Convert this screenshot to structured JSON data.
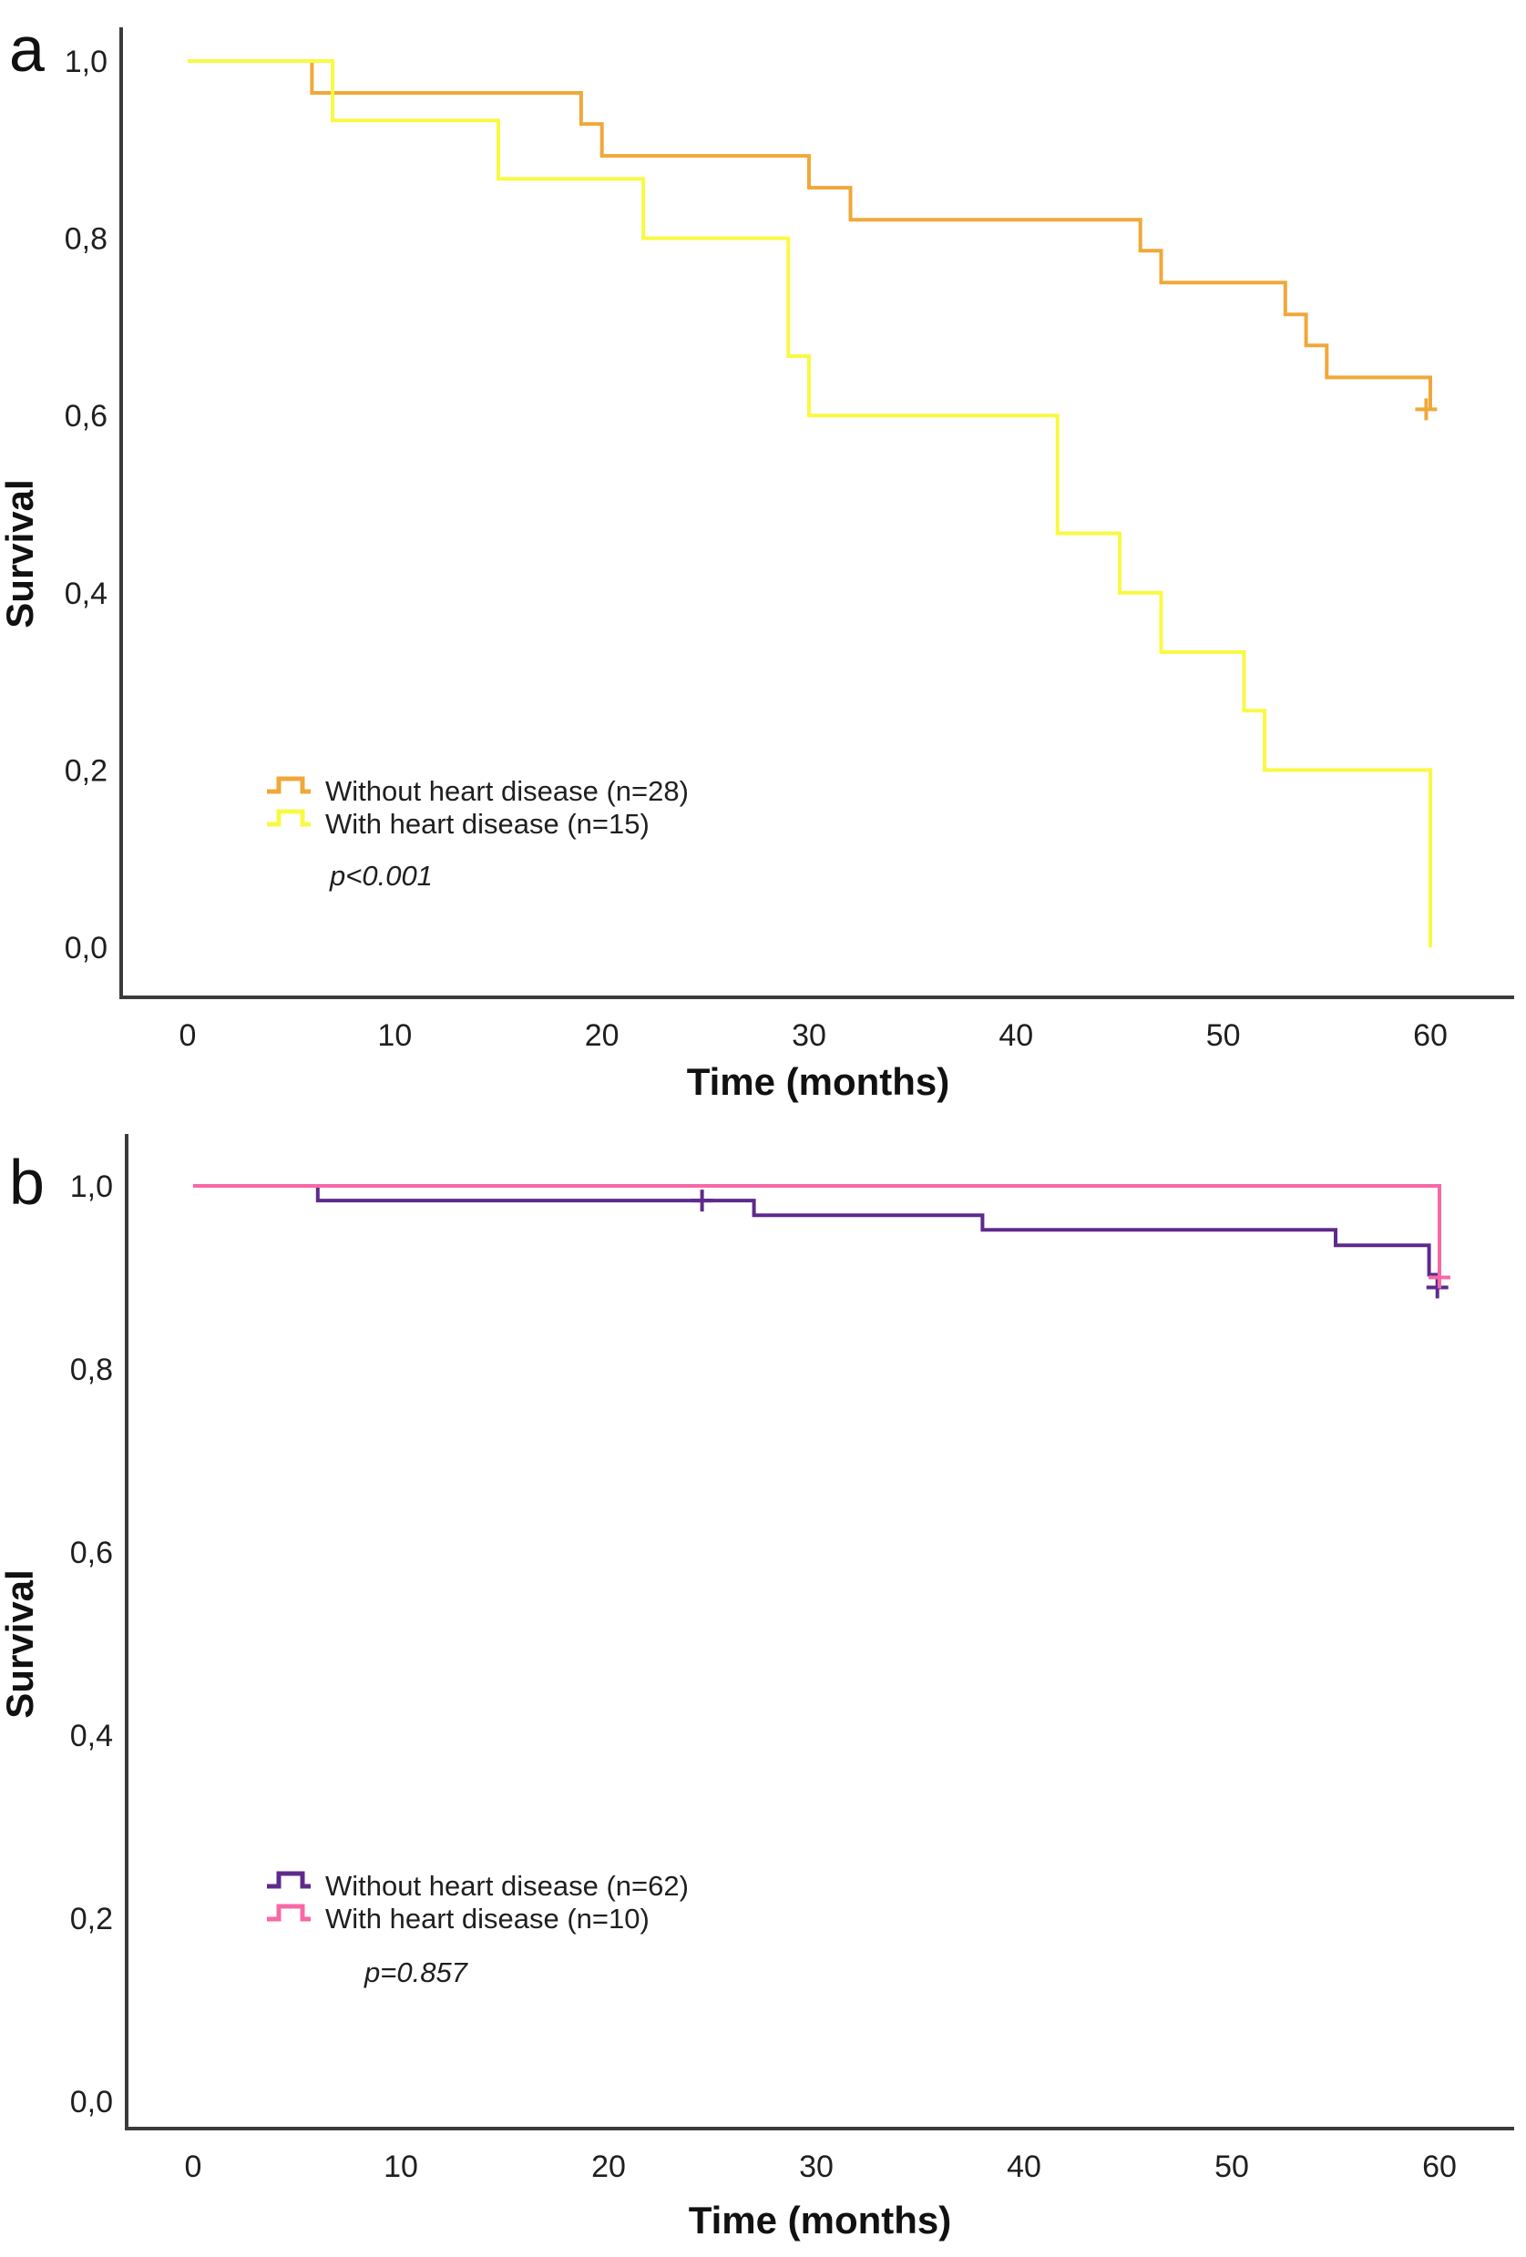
{
  "panels": [
    {
      "letter": "a",
      "x_axis_title": "Time (months)",
      "y_axis_title": "Survival",
      "x_tick_labels": [
        "0",
        "10",
        "20",
        "30",
        "40",
        "50",
        "60"
      ],
      "y_tick_labels": [
        "1,0",
        "0,8",
        "0,6",
        "0,4",
        "0,2",
        "0,0"
      ],
      "legend_items": [
        {
          "label": "Without heart disease (n=28)",
          "color": "#F0A83A"
        },
        {
          "label": "With heart disease (n=15)",
          "color": "#F9F943"
        }
      ],
      "p_value_label": "p<0.001"
    },
    {
      "letter": "b",
      "x_axis_title": "Time (months)",
      "y_axis_title": "Survival",
      "x_tick_labels": [
        "0",
        "10",
        "20",
        "30",
        "40",
        "50",
        "60"
      ],
      "y_tick_labels": [
        "1,0",
        "0,8",
        "0,6",
        "0,4",
        "0,2",
        "0,0"
      ],
      "legend_items": [
        {
          "label": "Without heart disease (n=62)",
          "color": "#5E2A8C"
        },
        {
          "label": "With heart disease (n=10)",
          "color": "#F768A6"
        }
      ],
      "p_value_label": "p=0.857"
    }
  ],
  "chart_data": [
    {
      "type": "line",
      "subtype": "kaplan-meier-step",
      "title": "a",
      "xlabel": "Time (months)",
      "ylabel": "Survival",
      "xlim": [
        0,
        60
      ],
      "ylim": [
        0.0,
        1.0
      ],
      "x_ticks": [
        0,
        10,
        20,
        30,
        40,
        50,
        60
      ],
      "y_ticks": [
        1.0,
        0.8,
        0.6,
        0.4,
        0.2,
        0.0
      ],
      "grid": false,
      "legend_position": "lower-left-inside",
      "p_value": "p<0.001",
      "series": [
        {
          "name": "Without heart disease (n=28)",
          "n": 28,
          "color": "#F0A83A",
          "points": [
            [
              0,
              1.0
            ],
            [
              6,
              0.964
            ],
            [
              19,
              0.929
            ],
            [
              20,
              0.893
            ],
            [
              30,
              0.857
            ],
            [
              32,
              0.821
            ],
            [
              46,
              0.786
            ],
            [
              47,
              0.75
            ],
            [
              53,
              0.714
            ],
            [
              54,
              0.679
            ],
            [
              55,
              0.643
            ],
            [
              60,
              0.607
            ]
          ],
          "censored": [
            [
              59.8,
              0.607
            ]
          ]
        },
        {
          "name": "With heart disease (n=15)",
          "n": 15,
          "color": "#F9F943",
          "points": [
            [
              0,
              1.0
            ],
            [
              7,
              0.933
            ],
            [
              15,
              0.867
            ],
            [
              22,
              0.8
            ],
            [
              29,
              0.667
            ],
            [
              30,
              0.6
            ],
            [
              42,
              0.467
            ],
            [
              45,
              0.4
            ],
            [
              47,
              0.333
            ],
            [
              51,
              0.267
            ],
            [
              52,
              0.2
            ],
            [
              60,
              0.0
            ]
          ],
          "censored": []
        }
      ]
    },
    {
      "type": "line",
      "subtype": "kaplan-meier-step",
      "title": "b",
      "xlabel": "Time (months)",
      "ylabel": "Survival",
      "xlim": [
        0,
        60
      ],
      "ylim": [
        0.0,
        1.0
      ],
      "x_ticks": [
        0,
        10,
        20,
        30,
        40,
        50,
        60
      ],
      "y_ticks": [
        1.0,
        0.8,
        0.6,
        0.4,
        0.2,
        0.0
      ],
      "grid": false,
      "legend_position": "lower-left-inside",
      "p_value": "p=0.857",
      "series": [
        {
          "name": "Without heart disease (n=62)",
          "n": 62,
          "color": "#5E2A8C",
          "points": [
            [
              0,
              1.0
            ],
            [
              6,
              0.984
            ],
            [
              27,
              0.968
            ],
            [
              38,
              0.952
            ],
            [
              55,
              0.935
            ],
            [
              59.5,
              0.903
            ],
            [
              60,
              0.903
            ]
          ],
          "censored": [
            [
              24.5,
              0.984
            ],
            [
              59.9,
              0.889
            ]
          ]
        },
        {
          "name": "With heart disease (n=10)",
          "n": 10,
          "color": "#F768A6",
          "points": [
            [
              0,
              1.0
            ],
            [
              60,
              0.9
            ]
          ],
          "censored": [
            [
              60,
              0.9
            ]
          ]
        }
      ]
    }
  ]
}
